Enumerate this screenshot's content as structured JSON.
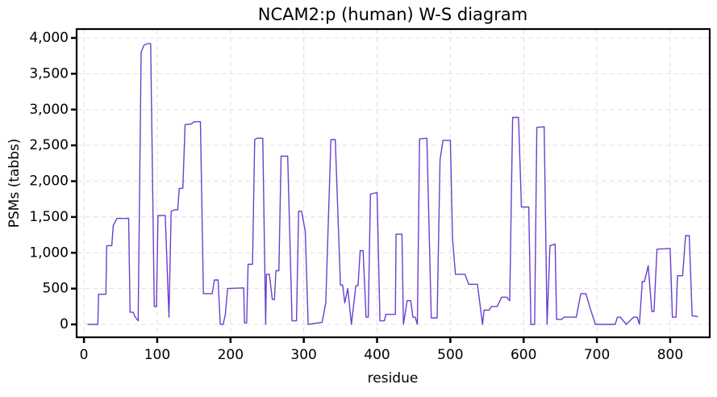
{
  "chart_data": {
    "type": "line",
    "title": "NCAM2:p (human) W-S diagram",
    "xlabel": "residue",
    "ylabel": "PSMs (tabbs)",
    "color": "#6a3fd0",
    "grid": true,
    "xlim": [
      -10,
      854
    ],
    "ylim": [
      -180,
      4124
    ],
    "xticks": [
      0,
      100,
      200,
      300,
      400,
      500,
      600,
      700,
      800
    ],
    "yticks": [
      0,
      500,
      {
        "value": 1000,
        "label": "1,000"
      },
      {
        "value": 1500,
        "label": "1,500"
      },
      {
        "value": 2000,
        "label": "2,000"
      },
      {
        "value": 2500,
        "label": "2,500"
      },
      {
        "value": 3000,
        "label": "3,000"
      },
      {
        "value": 3500,
        "label": "3,500"
      },
      {
        "value": 4000,
        "label": "4,000"
      }
    ],
    "x": [
      5,
      19,
      20,
      30,
      31,
      38,
      40,
      45,
      61,
      63,
      67,
      70,
      74,
      78,
      82,
      87,
      91,
      96,
      99,
      101,
      111,
      116,
      119,
      124,
      128,
      130,
      135,
      138,
      147,
      150,
      159,
      163,
      175,
      178,
      183,
      186,
      190,
      193,
      196,
      218,
      219,
      222,
      224,
      230,
      233,
      236,
      244,
      248,
      249,
      253,
      257,
      260,
      262,
      266,
      269,
      278,
      284,
      290,
      293,
      297,
      302,
      306,
      325,
      330,
      337,
      343,
      350,
      353,
      356,
      360,
      365,
      371,
      374,
      377,
      381,
      385,
      388,
      391,
      400,
      404,
      410,
      412,
      425,
      426,
      434,
      436,
      441,
      446,
      449,
      452,
      455,
      458,
      468,
      474,
      482,
      486,
      490,
      500,
      503,
      507,
      520,
      525,
      537,
      544,
      546,
      553,
      556,
      564,
      570,
      577,
      581,
      585,
      593,
      597,
      607,
      610,
      615,
      618,
      628,
      632,
      636,
      643,
      645,
      652,
      655,
      672,
      678,
      685,
      690,
      698,
      725,
      728,
      732,
      740,
      750,
      755,
      758,
      762,
      765,
      770,
      775,
      778,
      782,
      800,
      803,
      808,
      810,
      817,
      821,
      826,
      830,
      838
    ],
    "y": [
      0,
      0,
      420,
      420,
      1100,
      1100,
      1380,
      1480,
      1480,
      170,
      170,
      100,
      50,
      3800,
      3900,
      3920,
      3920,
      250,
      250,
      1520,
      1520,
      100,
      1580,
      1600,
      1600,
      1900,
      1900,
      2790,
      2800,
      2830,
      2830,
      430,
      430,
      620,
      620,
      0,
      0,
      140,
      500,
      510,
      20,
      20,
      840,
      840,
      2580,
      2600,
      2600,
      0,
      700,
      700,
      350,
      350,
      750,
      750,
      2350,
      2350,
      50,
      50,
      1580,
      1580,
      1300,
      0,
      30,
      300,
      2580,
      2580,
      550,
      550,
      300,
      500,
      0,
      540,
      540,
      1030,
      1030,
      100,
      100,
      1820,
      1840,
      50,
      50,
      140,
      140,
      1260,
      1260,
      0,
      330,
      330,
      100,
      100,
      0,
      2590,
      2600,
      90,
      90,
      2300,
      2570,
      2570,
      1200,
      700,
      700,
      560,
      560,
      0,
      200,
      200,
      250,
      250,
      380,
      380,
      330,
      2890,
      2890,
      1640,
      1640,
      0,
      0,
      2750,
      2760,
      0,
      1100,
      1120,
      70,
      70,
      100,
      100,
      430,
      430,
      250,
      0,
      0,
      100,
      100,
      0,
      100,
      100,
      0,
      600,
      600,
      820,
      180,
      180,
      1050,
      1060,
      100,
      100,
      680,
      680,
      1240,
      1240,
      120,
      110
    ]
  }
}
